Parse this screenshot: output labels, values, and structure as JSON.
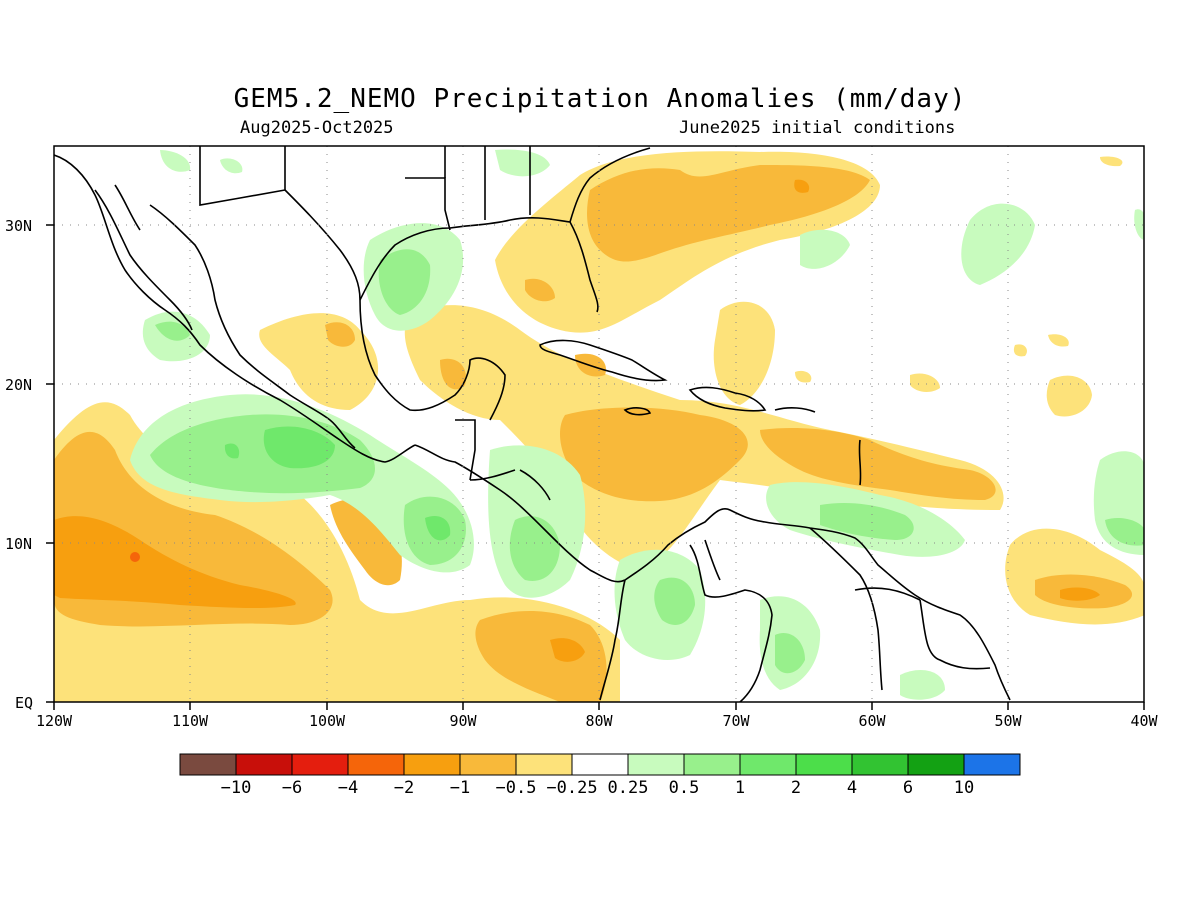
{
  "title": "GEM5.2_NEMO Precipitation Anomalies (mm/day)",
  "period": "Aug2025-Oct2025",
  "init": "June2025 initial conditions",
  "lat_labels": [
    "30N",
    "20N",
    "10N",
    "EQ"
  ],
  "lon_labels": [
    "120W",
    "110W",
    "100W",
    "90W",
    "80W",
    "70W",
    "60W",
    "50W",
    "40W"
  ],
  "colorbar": {
    "colors": [
      "#7a4a3f",
      "#c80f0a",
      "#e41e0e",
      "#f5650a",
      "#f79f0f",
      "#f8b93a",
      "#fde27a",
      "#ffffff",
      "#c8fbbe",
      "#98f08c",
      "#6fe86b",
      "#4cde4a",
      "#32c332",
      "#13a113",
      "#1c74e8"
    ],
    "labels": [
      "-10",
      "-6",
      "-4",
      "-2",
      "-1",
      "-0.5",
      "-0.25",
      "0.25",
      "0.5",
      "1",
      "2",
      "4",
      "6",
      "10"
    ]
  },
  "palette": {
    "orange_dark": "#f79f0f",
    "orange": "#f8b93a",
    "yellow": "#fde27a",
    "green_light": "#c8fbbe",
    "green": "#98f08c",
    "green_mid": "#6fe86b"
  }
}
